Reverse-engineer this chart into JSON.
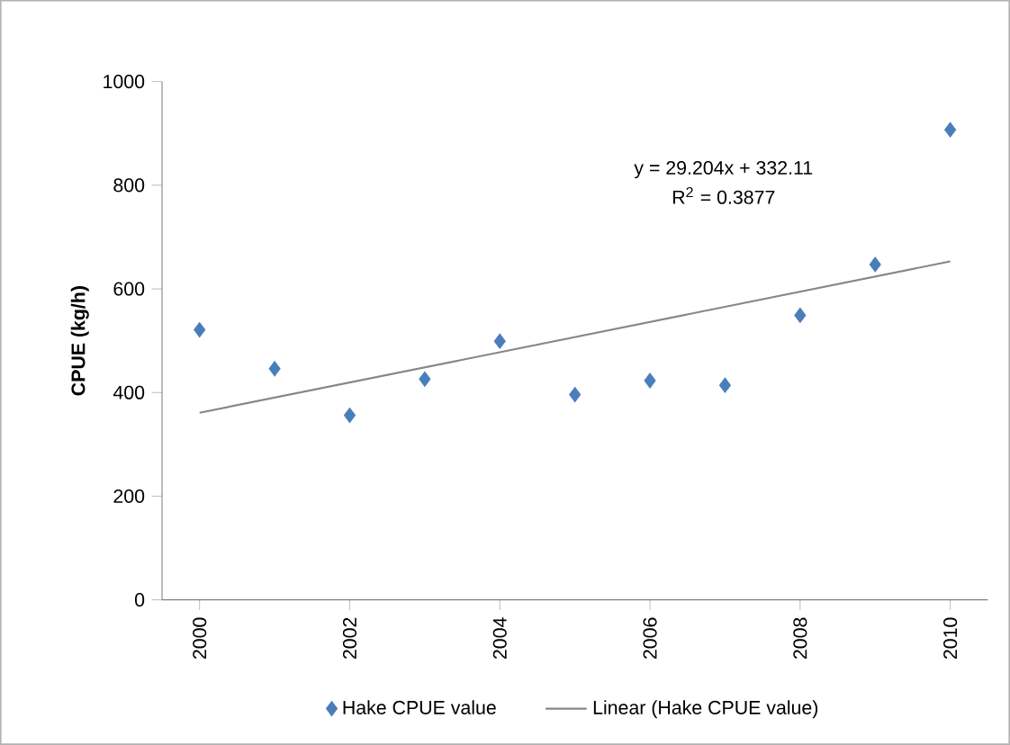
{
  "chart_data": {
    "type": "scatter",
    "ylabel": "CPUE (kg/h)",
    "annotations": [
      "y = 29.204x + 332.11",
      "R$^{2}$ = 0.3877"
    ],
    "x": [
      2000,
      2001,
      2002,
      2003,
      2004,
      2005,
      2006,
      2007,
      2008,
      2009,
      2010
    ],
    "series": [
      {
        "name": "Hake CPUE value",
        "marker": "diamond",
        "color": "#4a7ebb",
        "values": [
          521,
          446,
          356,
          426,
          499,
          396,
          423,
          414,
          549,
          647,
          907
        ]
      },
      {
        "name": "Linear (Hake CPUE value)",
        "type": "line",
        "marker": "none",
        "x": [
          2000,
          2010
        ],
        "color": "#868686",
        "values": [
          361,
          653
        ]
      }
    ],
    "xlim": [
      1999.5,
      2010.5
    ],
    "xticks": [
      2000,
      2002,
      2004,
      2006,
      2008,
      2010
    ],
    "ylim": [
      0,
      1000
    ],
    "yticks": [
      0,
      200,
      400,
      600,
      800,
      1000
    ],
    "legend": "bottom"
  }
}
